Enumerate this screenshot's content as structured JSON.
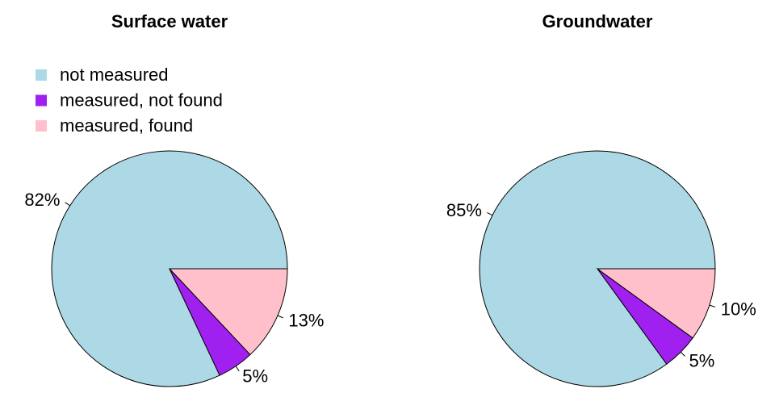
{
  "chart_data": [
    {
      "type": "pie",
      "title": "Surface water",
      "categories": [
        "not measured",
        "measured, not found",
        "measured, found"
      ],
      "values": [
        82,
        5,
        13
      ],
      "value_labels": [
        "82%",
        "5%",
        "13%"
      ],
      "colors": [
        "#ADD8E6",
        "#A020F0",
        "#FFC0CB"
      ],
      "legend": "top-left"
    },
    {
      "type": "pie",
      "title": "Groundwater",
      "categories": [
        "not measured",
        "measured, not found",
        "measured, found"
      ],
      "values": [
        85,
        5,
        10
      ],
      "value_labels": [
        "85%",
        "5%",
        "10%"
      ],
      "colors": [
        "#ADD8E6",
        "#A020F0",
        "#FFC0CB"
      ]
    }
  ]
}
